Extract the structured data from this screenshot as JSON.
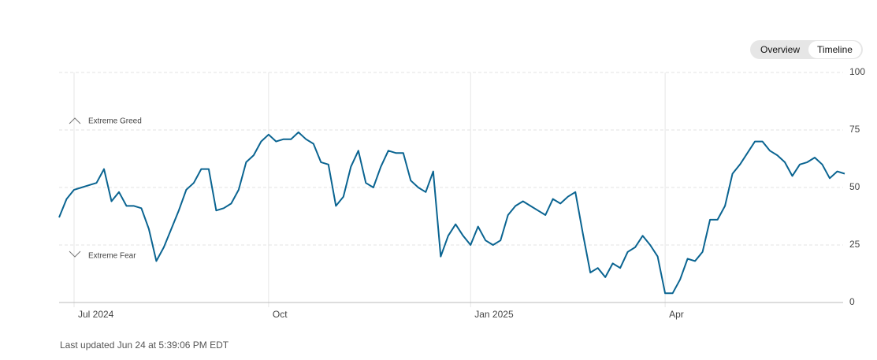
{
  "controls": [
    "Overview",
    "Timeline"
  ],
  "chart_data": {
    "type": "line",
    "annotations": [
      "Extreme Greed",
      "Extreme Fear"
    ],
    "categories": [
      null,
      null,
      "Jul 2024",
      null,
      null,
      null,
      null,
      null,
      null,
      null,
      null,
      null,
      null,
      null,
      null,
      null,
      null,
      null,
      null,
      null,
      null,
      null,
      null,
      null,
      null,
      null,
      null,
      null,
      "Oct",
      null,
      null,
      null,
      null,
      null,
      null,
      null,
      null,
      null,
      null,
      null,
      null,
      null,
      null,
      null,
      null,
      null,
      null,
      null,
      null,
      null,
      null,
      null,
      null,
      null,
      null,
      "Jan 2025",
      null,
      null,
      null,
      null,
      null,
      null,
      null,
      null,
      null,
      null,
      null,
      null,
      null,
      null,
      null,
      null,
      null,
      null,
      null,
      null,
      null,
      null,
      null,
      null,
      null,
      "Apr",
      null,
      null,
      null,
      null,
      null,
      null,
      null,
      null,
      null,
      null,
      null,
      null,
      null,
      null,
      null,
      null,
      null,
      null,
      null,
      null,
      null,
      null,
      null,
      null
    ],
    "values": [
      37,
      45,
      49,
      50,
      51,
      52,
      58,
      44,
      48,
      42,
      42,
      41,
      32,
      18,
      24,
      32,
      40,
      49,
      52,
      58,
      58,
      40,
      41,
      43,
      49,
      61,
      64,
      70,
      73,
      70,
      71,
      71,
      74,
      71,
      69,
      61,
      60,
      42,
      46,
      59,
      66,
      52,
      50,
      59,
      66,
      65,
      65,
      53,
      50,
      48,
      57,
      20,
      29,
      34,
      29,
      25,
      33,
      27,
      25,
      27,
      38,
      42,
      44,
      42,
      40,
      38,
      45,
      43,
      46,
      48,
      30,
      13,
      15,
      11,
      17,
      15,
      22,
      24,
      29,
      25,
      20,
      4,
      4,
      10,
      19,
      18,
      22,
      36,
      36,
      42,
      56,
      60,
      65,
      70,
      70,
      66,
      64,
      61,
      55,
      60,
      61,
      63,
      60,
      54,
      57,
      56
    ],
    "color": "#0a6491",
    "ylim": [
      0,
      100
    ],
    "yticks": [
      0,
      25,
      50,
      75,
      100
    ],
    "grid": true
  },
  "footer": "Last updated Jun 24 at 5:39:06 PM EDT"
}
